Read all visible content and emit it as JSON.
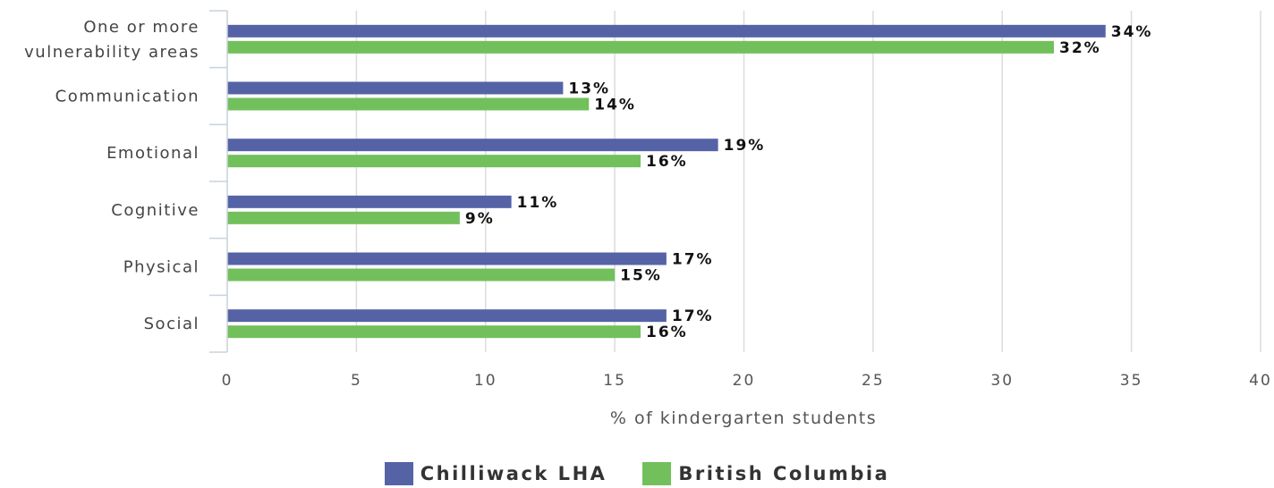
{
  "chart_data": {
    "type": "bar",
    "orientation": "horizontal",
    "categories": [
      "One or more vulnerability areas",
      "Communication",
      "Emotional",
      "Cognitive",
      "Physical",
      "Social"
    ],
    "category_label_lines": [
      [
        "One or more",
        "vulnerability areas"
      ],
      [
        "Communication"
      ],
      [
        "Emotional"
      ],
      [
        "Cognitive"
      ],
      [
        "Physical"
      ],
      [
        "Social"
      ]
    ],
    "series": [
      {
        "name": "Chilliwack LHA",
        "color": "#5563a6",
        "values": [
          34,
          13,
          19,
          11,
          17,
          17
        ],
        "labels": [
          "34%",
          "13%",
          "19%",
          "11%",
          "17%",
          "17%"
        ]
      },
      {
        "name": "British Columbia",
        "color": "#72c05c",
        "values": [
          32,
          14,
          16,
          9,
          15,
          16
        ],
        "labels": [
          "32%",
          "14%",
          "16%",
          "9%",
          "15%",
          "16%"
        ]
      }
    ],
    "xlabel": "% of kindergarten students",
    "ylabel": "",
    "xlim": [
      0,
      40
    ],
    "xticks": [
      "0",
      "5",
      "10",
      "15",
      "20",
      "25",
      "30",
      "35",
      "40"
    ],
    "grid": true,
    "legend_position": "bottom"
  }
}
